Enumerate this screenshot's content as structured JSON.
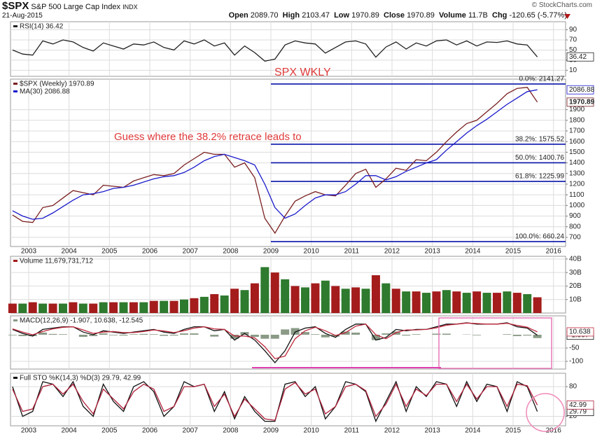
{
  "header": {
    "symbol": "$SPX",
    "name": "S&P 500 Large Cap Index",
    "exchange": "INDX",
    "credit": "© StockCharts.com",
    "date": "21-Aug-2015",
    "quote": [
      {
        "label": "Open",
        "value": "2089.70"
      },
      {
        "label": "High",
        "value": "2103.47"
      },
      {
        "label": "Low",
        "value": "1970.89"
      },
      {
        "label": "Close",
        "value": "1970.89"
      },
      {
        "label": "Volume",
        "value": "11.7B"
      },
      {
        "label": "Chg",
        "value": "-120.65 (-5.77%)"
      }
    ]
  },
  "annotations": {
    "wkly": "SPX WKLY",
    "guess": "Guess where the 38.2% retrace leads to"
  },
  "chart_data": [
    {
      "type": "line",
      "legend": [
        "RSI(14) 36.42"
      ],
      "xlim": [
        2002.55,
        2016.3
      ],
      "ylim": [
        -2,
        106
      ],
      "yticks": [
        10,
        30,
        50,
        70,
        90
      ],
      "grid": true,
      "x": [
        2002.6,
        2002.85,
        2003.1,
        2003.35,
        2003.6,
        2003.85,
        2004.1,
        2004.35,
        2004.6,
        2004.85,
        2005.1,
        2005.35,
        2005.6,
        2005.85,
        2006.1,
        2006.35,
        2006.6,
        2006.85,
        2007.1,
        2007.35,
        2007.6,
        2007.85,
        2008.1,
        2008.35,
        2008.6,
        2008.85,
        2009.1,
        2009.35,
        2009.6,
        2009.85,
        2010.1,
        2010.35,
        2010.6,
        2010.85,
        2011.1,
        2011.35,
        2011.6,
        2011.85,
        2012.1,
        2012.35,
        2012.6,
        2012.85,
        2013.1,
        2013.35,
        2013.6,
        2013.85,
        2014.1,
        2014.35,
        2014.6,
        2014.85,
        2015.1,
        2015.35,
        2015.6
      ],
      "series": [
        {
          "color": "#222222",
          "end_label": true,
          "values": [
            50,
            42,
            40,
            68,
            62,
            70,
            66,
            55,
            48,
            64,
            58,
            52,
            62,
            60,
            66,
            55,
            50,
            68,
            62,
            70,
            58,
            64,
            40,
            58,
            45,
            28,
            32,
            60,
            68,
            64,
            62,
            44,
            55,
            66,
            68,
            62,
            36,
            56,
            66,
            52,
            64,
            58,
            68,
            70,
            60,
            68,
            58,
            66,
            65,
            68,
            62,
            60,
            36.42
          ]
        }
      ]
    },
    {
      "type": "line",
      "legend": [
        "$SPX (Weekly) 1970.89",
        "MA(30) 2086.88"
      ],
      "xlim": [
        2002.55,
        2016.3
      ],
      "ylim": [
        614,
        2187
      ],
      "yticks": [
        700,
        800,
        900,
        1000,
        1100,
        1200,
        1300,
        1400,
        1500,
        1600,
        1700,
        1800,
        1900
      ],
      "grid": true,
      "xticks": [
        2003,
        2004,
        2005,
        2006,
        2007,
        2008,
        2009,
        2010,
        2011,
        2012,
        2013,
        2014,
        2015,
        2016
      ],
      "levels_from": 2009.0,
      "levels_color": "#0a14a8",
      "levels": [
        {
          "value": 2141.27,
          "label": "0.0%: 2141.27"
        },
        {
          "value": 1575.52,
          "label": "38.2%: 1575.52"
        },
        {
          "value": 1400.76,
          "label": "50.0%: 1400.76"
        },
        {
          "value": 1225.99,
          "label": "61.8%: 1225.99"
        },
        {
          "value": 660.24,
          "label": "100.0%: 660.24"
        }
      ],
      "x": [
        2002.6,
        2002.85,
        2003.1,
        2003.35,
        2003.6,
        2003.85,
        2004.1,
        2004.35,
        2004.6,
        2004.85,
        2005.1,
        2005.35,
        2005.6,
        2005.85,
        2006.1,
        2006.35,
        2006.6,
        2006.85,
        2007.1,
        2007.35,
        2007.6,
        2007.85,
        2008.1,
        2008.35,
        2008.6,
        2008.85,
        2009.1,
        2009.35,
        2009.6,
        2009.85,
        2010.1,
        2010.35,
        2010.6,
        2010.85,
        2011.1,
        2011.35,
        2011.6,
        2011.85,
        2012.1,
        2012.35,
        2012.6,
        2012.85,
        2013.1,
        2013.35,
        2013.6,
        2013.85,
        2014.1,
        2014.35,
        2014.6,
        2014.85,
        2015.1,
        2015.35,
        2015.6
      ],
      "series": [
        {
          "color": "#7a1f1f",
          "end_label": true,
          "values": [
            910,
            850,
            840,
            980,
            1000,
            1070,
            1140,
            1120,
            1100,
            1190,
            1180,
            1170,
            1230,
            1260,
            1290,
            1280,
            1300,
            1380,
            1440,
            1500,
            1480,
            1480,
            1360,
            1400,
            1260,
            880,
            740,
            900,
            1040,
            1090,
            1130,
            1100,
            1090,
            1190,
            1300,
            1340,
            1170,
            1250,
            1350,
            1330,
            1430,
            1420,
            1500,
            1600,
            1690,
            1770,
            1800,
            1880,
            1960,
            2050,
            2100,
            2110,
            1970.89
          ]
        },
        {
          "color": "#1a1acc",
          "end_label": true,
          "values": [
            950,
            900,
            870,
            880,
            930,
            990,
            1050,
            1100,
            1110,
            1130,
            1160,
            1170,
            1190,
            1220,
            1250,
            1270,
            1280,
            1310,
            1360,
            1420,
            1460,
            1480,
            1450,
            1420,
            1380,
            1200,
            980,
            880,
            920,
            1000,
            1070,
            1100,
            1100,
            1130,
            1200,
            1280,
            1280,
            1240,
            1270,
            1320,
            1360,
            1400,
            1430,
            1520,
            1600,
            1680,
            1750,
            1810,
            1880,
            1950,
            2010,
            2070,
            2086.88
          ]
        }
      ]
    },
    {
      "type": "bar",
      "legend": [
        "Volume 11,679,731,712"
      ],
      "xlim": [
        2002.55,
        2016.3
      ],
      "ylim": [
        0,
        42
      ],
      "grid": true,
      "yticks": [
        {
          "value": 10,
          "label": "10B"
        },
        {
          "value": 20,
          "label": "20B"
        },
        {
          "value": 30,
          "label": "30B"
        },
        {
          "value": 40,
          "label": "40B"
        }
      ],
      "x": [
        2002.6,
        2002.85,
        2003.1,
        2003.35,
        2003.6,
        2003.85,
        2004.1,
        2004.35,
        2004.6,
        2004.85,
        2005.1,
        2005.35,
        2005.6,
        2005.85,
        2006.1,
        2006.35,
        2006.6,
        2006.85,
        2007.1,
        2007.35,
        2007.6,
        2007.85,
        2008.1,
        2008.35,
        2008.6,
        2008.85,
        2009.1,
        2009.35,
        2009.6,
        2009.85,
        2010.1,
        2010.35,
        2010.6,
        2010.85,
        2011.1,
        2011.35,
        2011.6,
        2011.85,
        2012.1,
        2012.35,
        2012.6,
        2012.85,
        2013.1,
        2013.35,
        2013.6,
        2013.85,
        2014.1,
        2014.35,
        2014.6,
        2014.85,
        2015.1,
        2015.35,
        2015.6
      ],
      "series": [
        {
          "colors": [
            "#a51c1c",
            "#2e7a2e"
          ],
          "values": [
            7,
            7,
            8,
            7,
            7,
            7,
            8,
            7,
            7,
            8,
            8,
            8,
            8,
            8,
            9,
            9,
            9,
            10,
            11,
            12,
            14,
            13,
            18,
            17,
            22,
            34,
            30,
            25,
            20,
            19,
            22,
            24,
            20,
            18,
            19,
            18,
            28,
            22,
            18,
            16,
            16,
            15,
            16,
            17,
            16,
            15,
            16,
            15,
            15,
            16,
            15,
            14,
            11.68
          ]
        }
      ]
    },
    {
      "type": "line",
      "legend": [
        "MACD(12,26,9) -1.907, 10.638, -12.545"
      ],
      "xlim": [
        2002.55,
        2016.3
      ],
      "ylim": [
        -129,
        71
      ],
      "yticks": [
        -100,
        -50
      ],
      "grid": true,
      "x": [
        2002.6,
        2002.85,
        2003.1,
        2003.35,
        2003.6,
        2003.85,
        2004.1,
        2004.35,
        2004.6,
        2004.85,
        2005.1,
        2005.35,
        2005.6,
        2005.85,
        2006.1,
        2006.35,
        2006.6,
        2006.85,
        2007.1,
        2007.35,
        2007.6,
        2007.85,
        2008.1,
        2008.35,
        2008.6,
        2008.85,
        2009.1,
        2009.35,
        2009.6,
        2009.85,
        2010.1,
        2010.35,
        2010.6,
        2010.85,
        2011.1,
        2011.35,
        2011.6,
        2011.85,
        2012.1,
        2012.35,
        2012.6,
        2012.85,
        2013.1,
        2013.35,
        2013.6,
        2013.85,
        2014.1,
        2014.35,
        2014.6,
        2014.85,
        2015.1,
        2015.35,
        2015.6
      ],
      "series": [
        {
          "type": "bar",
          "color": "#8a9a86",
          "values": [
            -2,
            -5,
            -5,
            8,
            3,
            2,
            0,
            -8,
            -5,
            5,
            -2,
            -3,
            2,
            3,
            2,
            -4,
            -3,
            5,
            5,
            0,
            -7,
            0,
            -15,
            10,
            -8,
            -15,
            -15,
            20,
            25,
            10,
            2,
            -10,
            -7,
            12,
            8,
            0,
            -20,
            5,
            12,
            -3,
            2,
            0,
            4,
            4,
            0,
            1,
            -2,
            0,
            0,
            2,
            -5,
            -3,
            -12.545
          ]
        },
        {
          "color": "#111111",
          "end_label": true,
          "values": [
            20,
            5,
            -5,
            20,
            25,
            30,
            30,
            10,
            0,
            15,
            10,
            5,
            10,
            15,
            20,
            10,
            5,
            20,
            30,
            30,
            15,
            20,
            -20,
            5,
            -20,
            -60,
            -105,
            -60,
            10,
            25,
            30,
            5,
            -10,
            20,
            40,
            40,
            -20,
            -10,
            20,
            15,
            20,
            20,
            30,
            40,
            40,
            45,
            40,
            40,
            40,
            45,
            30,
            25,
            -1.907
          ]
        },
        {
          "color": "#c0283c",
          "end_label": true,
          "values": [
            22,
            10,
            0,
            12,
            22,
            28,
            30,
            18,
            5,
            10,
            12,
            8,
            8,
            12,
            18,
            14,
            8,
            15,
            25,
            30,
            22,
            20,
            -5,
            -5,
            -12,
            -45,
            -90,
            -80,
            -15,
            15,
            28,
            15,
            -3,
            8,
            32,
            40,
            0,
            -15,
            8,
            18,
            18,
            20,
            26,
            36,
            40,
            44,
            42,
            40,
            40,
            43,
            35,
            28,
            10.638
          ]
        }
      ]
    },
    {
      "type": "line",
      "legend": [
        "Full STO %K(14,3) %D(3) 29.79, 42.99"
      ],
      "xlim": [
        2002.55,
        2016.3
      ],
      "ylim": [
        1,
        107
      ],
      "yticks": [
        20,
        80
      ],
      "grid": true,
      "xticks": [
        2003,
        2004,
        2005,
        2006,
        2007,
        2008,
        2009,
        2010,
        2011,
        2012,
        2013,
        2014,
        2015,
        2016
      ],
      "x": [
        2002.6,
        2002.85,
        2003.1,
        2003.35,
        2003.6,
        2003.85,
        2004.1,
        2004.35,
        2004.6,
        2004.85,
        2005.1,
        2005.35,
        2005.6,
        2005.85,
        2006.1,
        2006.35,
        2006.6,
        2006.85,
        2007.1,
        2007.35,
        2007.6,
        2007.85,
        2008.1,
        2008.35,
        2008.6,
        2008.85,
        2009.1,
        2009.35,
        2009.6,
        2009.85,
        2010.1,
        2010.35,
        2010.6,
        2010.85,
        2011.1,
        2011.35,
        2011.6,
        2011.85,
        2012.1,
        2012.35,
        2012.6,
        2012.85,
        2013.1,
        2013.35,
        2013.6,
        2013.85,
        2014.1,
        2014.35,
        2014.6,
        2014.85,
        2015.1,
        2015.35,
        2015.6
      ],
      "series": [
        {
          "color": "#111111",
          "end_label": true,
          "values": [
            80,
            20,
            30,
            90,
            85,
            60,
            90,
            40,
            20,
            85,
            50,
            30,
            80,
            90,
            70,
            20,
            40,
            90,
            80,
            85,
            30,
            70,
            15,
            60,
            30,
            10,
            10,
            85,
            90,
            60,
            80,
            15,
            40,
            90,
            85,
            70,
            10,
            50,
            90,
            30,
            80,
            60,
            90,
            85,
            40,
            90,
            50,
            85,
            80,
            30,
            90,
            80,
            29.79
          ]
        },
        {
          "color": "#b0203a",
          "end_label": true,
          "values": [
            75,
            30,
            35,
            80,
            85,
            65,
            85,
            50,
            25,
            75,
            55,
            35,
            70,
            85,
            75,
            30,
            40,
            80,
            80,
            85,
            40,
            65,
            20,
            55,
            35,
            15,
            12,
            75,
            88,
            65,
            75,
            25,
            40,
            80,
            85,
            72,
            20,
            45,
            85,
            40,
            75,
            62,
            85,
            85,
            50,
            85,
            55,
            80,
            80,
            40,
            85,
            82,
            42.99
          ]
        }
      ]
    }
  ]
}
